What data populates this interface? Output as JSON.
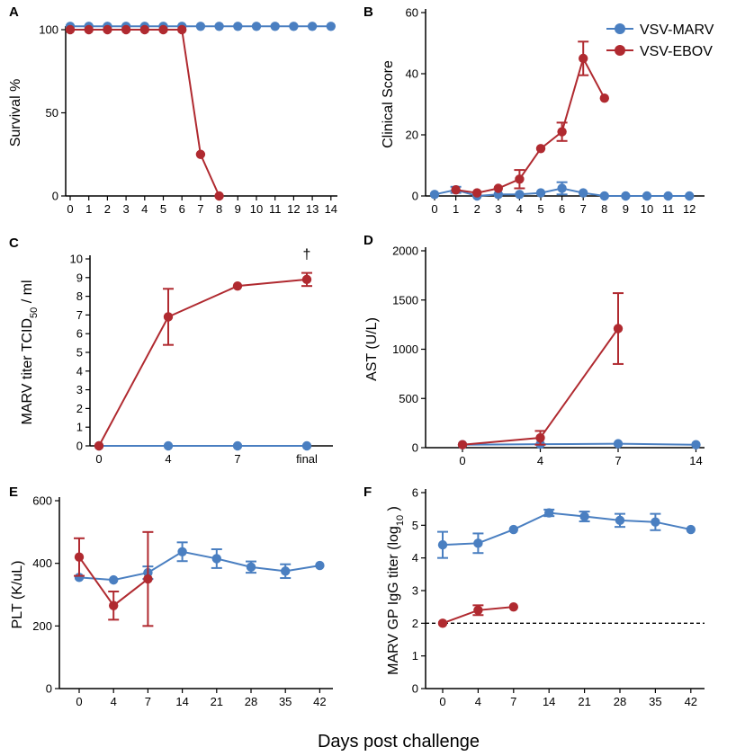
{
  "colors": {
    "marv": "#4a7fc1",
    "ebov": "#b02a30",
    "axis": "#000000"
  },
  "legend": [
    {
      "key": "marv",
      "label": "VSV-MARV"
    },
    {
      "key": "ebov",
      "label": "VSV-EBOV"
    }
  ],
  "xlabel_global": "Days post challenge",
  "chart_data": [
    {
      "panel": "A",
      "type": "line",
      "ylabel": "Survival %",
      "xlabel": "",
      "ylim": [
        0,
        100
      ],
      "yticks": [
        0,
        50,
        100
      ],
      "xticks": [
        "0",
        "1",
        "2",
        "3",
        "4",
        "5",
        "6",
        "7",
        "8",
        "9",
        "10",
        "11",
        "12",
        "13",
        "14"
      ],
      "series": [
        {
          "key": "marv",
          "x": [
            0,
            1,
            2,
            3,
            4,
            5,
            6,
            7,
            8,
            9,
            10,
            11,
            12,
            13,
            14
          ],
          "y": [
            102,
            102,
            102,
            102,
            102,
            102,
            102,
            102,
            102,
            102,
            102,
            102,
            102,
            102,
            102
          ]
        },
        {
          "key": "ebov",
          "x": [
            0,
            1,
            2,
            3,
            4,
            5,
            6,
            7,
            8
          ],
          "y": [
            100,
            100,
            100,
            100,
            100,
            100,
            100,
            25,
            0
          ]
        }
      ]
    },
    {
      "panel": "B",
      "type": "line",
      "ylabel": "Clinical Score",
      "xlabel": "",
      "ylim": [
        0,
        60
      ],
      "yticks": [
        0,
        20,
        40,
        60
      ],
      "xticks": [
        "0",
        "1",
        "2",
        "3",
        "4",
        "5",
        "6",
        "7",
        "8",
        "9",
        "10",
        "11",
        "12"
      ],
      "series": [
        {
          "key": "marv",
          "x": [
            0,
            1,
            2,
            3,
            4,
            5,
            6,
            7,
            8,
            9,
            10,
            11,
            12
          ],
          "y": [
            0.5,
            2,
            0,
            0.5,
            0.5,
            1,
            2.5,
            1,
            0,
            0,
            0,
            0,
            0
          ],
          "err": [
            0,
            1,
            0,
            0,
            0,
            0,
            2,
            0,
            0,
            0,
            0,
            0,
            0
          ]
        },
        {
          "key": "ebov",
          "x": [
            1,
            2,
            3,
            4,
            5,
            6,
            7,
            8
          ],
          "y": [
            2,
            1,
            2.5,
            5.5,
            15.5,
            21,
            45,
            32
          ],
          "err": [
            0,
            0,
            0,
            3,
            0,
            3,
            5.5,
            0
          ]
        }
      ]
    },
    {
      "panel": "C",
      "type": "line",
      "ylabel": "MARV titer TCID",
      "ylabel_sub": "50",
      "ylabel_tail": "/ ml",
      "xlabel": "",
      "ylim": [
        0,
        10
      ],
      "yticks": [
        0,
        1,
        2,
        3,
        4,
        5,
        6,
        7,
        8,
        9,
        10
      ],
      "xticks": [
        "0",
        "4",
        "7",
        "final"
      ],
      "annotation": "†",
      "series": [
        {
          "key": "marv",
          "x": [
            0,
            1,
            2,
            3
          ],
          "y": [
            0,
            0,
            0,
            0
          ],
          "err": [
            0,
            0,
            0,
            0
          ]
        },
        {
          "key": "ebov",
          "x": [
            0,
            1,
            2,
            3
          ],
          "y": [
            0,
            6.9,
            8.55,
            8.9
          ],
          "err": [
            0,
            1.5,
            0,
            0.35
          ]
        }
      ]
    },
    {
      "panel": "D",
      "type": "line",
      "ylabel": "AST (U/L)",
      "xlabel": "",
      "ylim": [
        0,
        2000
      ],
      "yticks": [
        0,
        500,
        1000,
        1500,
        2000
      ],
      "xticks": [
        "0",
        "4",
        "7",
        "14"
      ],
      "series": [
        {
          "key": "marv",
          "x": [
            0,
            1,
            2,
            3
          ],
          "y": [
            30,
            35,
            40,
            30
          ],
          "err": [
            0,
            0,
            0,
            0
          ]
        },
        {
          "key": "ebov",
          "x": [
            0,
            1,
            2
          ],
          "y": [
            30,
            100,
            1210
          ],
          "err": [
            0,
            70,
            360
          ]
        }
      ]
    },
    {
      "panel": "E",
      "type": "line",
      "ylabel": "PLT (K/uL)",
      "xlabel": "",
      "ylim": [
        0,
        600
      ],
      "yticks": [
        0,
        200,
        400,
        600
      ],
      "xticks": [
        "0",
        "4",
        "7",
        "14",
        "21",
        "28",
        "35",
        "42"
      ],
      "series": [
        {
          "key": "marv",
          "x": [
            0,
            1,
            2,
            3,
            4,
            5,
            6,
            7
          ],
          "y": [
            355,
            347,
            370,
            437,
            415,
            388,
            375,
            393
          ],
          "err": [
            0,
            0,
            20,
            30,
            30,
            18,
            22,
            0
          ]
        },
        {
          "key": "ebov",
          "x": [
            0,
            1,
            2
          ],
          "y": [
            420,
            265,
            350
          ],
          "err": [
            60,
            45,
            150
          ]
        }
      ]
    },
    {
      "panel": "F",
      "type": "line",
      "ylabel": "MARV GP IgG titer (log",
      "ylabel_sub": "10",
      "ylabel_tail": ")",
      "xlabel": "",
      "ylim": [
        0,
        6
      ],
      "yticks": [
        0,
        1,
        2,
        3,
        4,
        5,
        6
      ],
      "xticks": [
        "0",
        "4",
        "7",
        "14",
        "21",
        "28",
        "35",
        "42"
      ],
      "reference_line": 2,
      "series": [
        {
          "key": "marv",
          "x": [
            0,
            1,
            2,
            3,
            4,
            5,
            6,
            7
          ],
          "y": [
            4.4,
            4.45,
            4.87,
            5.38,
            5.27,
            5.15,
            5.1,
            4.87
          ],
          "err": [
            0.4,
            0.3,
            0,
            0.1,
            0.15,
            0.2,
            0.25,
            0
          ]
        },
        {
          "key": "ebov",
          "x": [
            0,
            1,
            2
          ],
          "y": [
            2,
            2.4,
            2.5
          ],
          "err": [
            0,
            0.15,
            0
          ]
        }
      ]
    }
  ]
}
